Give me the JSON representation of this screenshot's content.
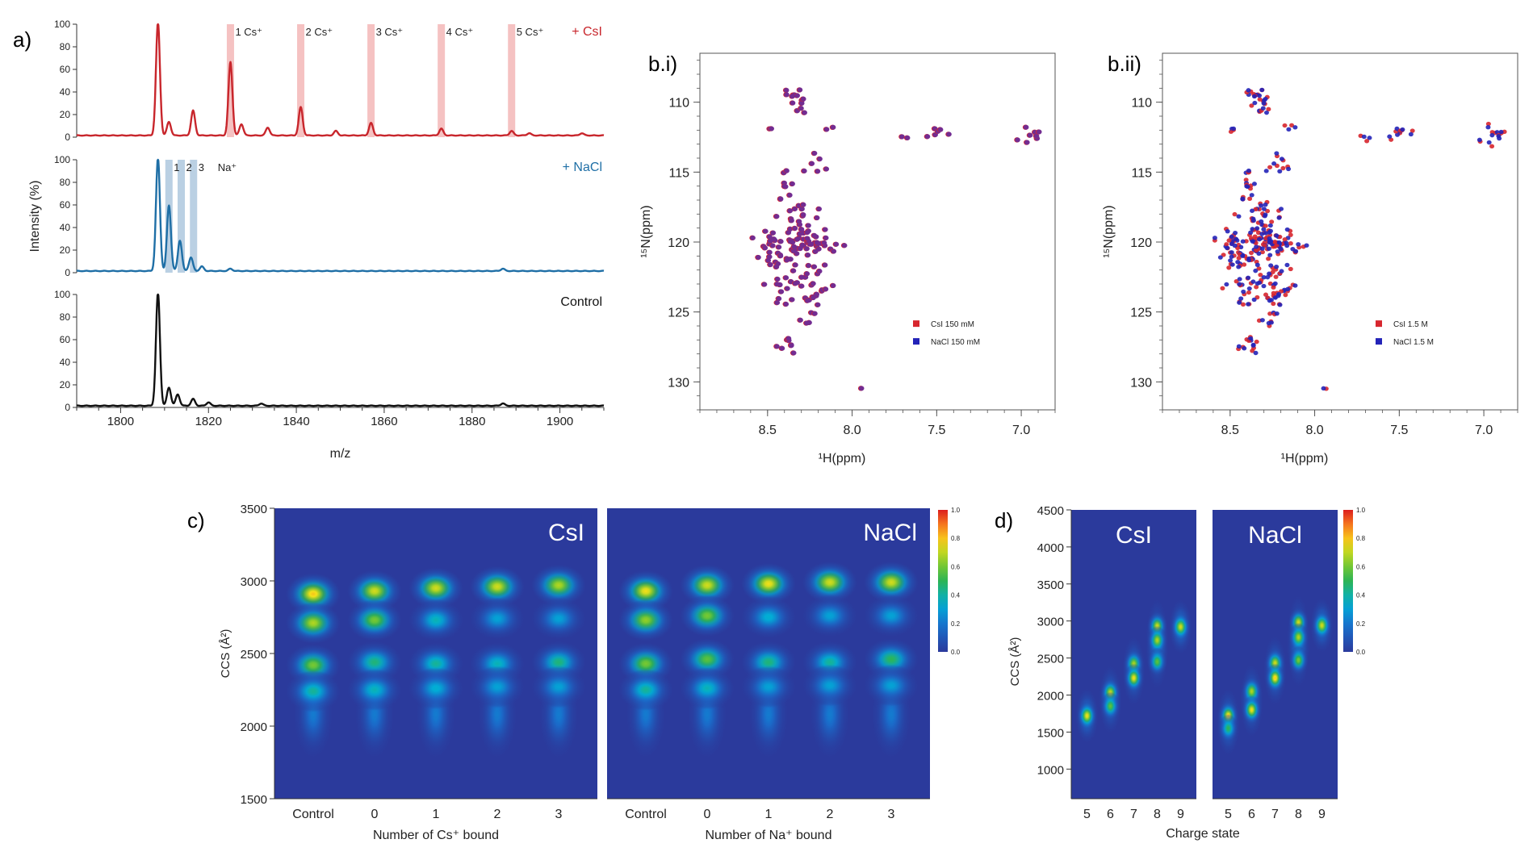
{
  "panels": {
    "a": "a)",
    "bi": "b.i)",
    "bii": "b.ii)",
    "c": "c)",
    "d": "d)"
  },
  "colors": {
    "csi": "#c8262c",
    "nacl": "#1f6fa6",
    "control": "#111111",
    "highlight_red": "#f3b3b3",
    "highlight_blue": "#a9c4dc",
    "nmr_red": "#d7262e",
    "nmr_blue": "#2323b8",
    "nmr_overlay": "#6a2d9a",
    "imms_bg": "#2b3a9c"
  },
  "chart_data": [
    {
      "type": "line",
      "panel": "a",
      "xlabel": "m/z",
      "ylabel": "Intensity (%)",
      "xlim": [
        1790,
        1910
      ],
      "xticks": [
        1800,
        1820,
        1840,
        1860,
        1880,
        1900
      ],
      "ylim": [
        0,
        100
      ],
      "yticks": [
        0,
        20,
        40,
        60,
        80,
        100
      ],
      "series": [
        {
          "name": "+ CsI",
          "peaks": [
            [
              1808.5,
              100
            ],
            [
              1811,
              12
            ],
            [
              1816.5,
              22
            ],
            [
              1825,
              65
            ],
            [
              1827.5,
              10
            ],
            [
              1833.5,
              7
            ],
            [
              1841,
              25
            ],
            [
              1849,
              4
            ],
            [
              1857,
              11
            ],
            [
              1873,
              6
            ],
            [
              1889,
              4
            ],
            [
              1893,
              2
            ],
            [
              1905,
              2
            ]
          ],
          "annotations": [
            "1 Cs⁺",
            "2 Cs⁺",
            "3 Cs⁺",
            "4 Cs⁺",
            "5 Cs⁺"
          ],
          "annotation_x": [
            1825,
            1841,
            1857,
            1873,
            1889
          ]
        },
        {
          "name": "+ NaCl",
          "peaks": [
            [
              1808.5,
              100
            ],
            [
              1811,
              58
            ],
            [
              1813.5,
              27
            ],
            [
              1816,
              12
            ],
            [
              1818.5,
              4
            ],
            [
              1825,
              2
            ],
            [
              1887,
              2
            ]
          ],
          "annotations": [
            "1",
            "2",
            "3",
            "Na⁺"
          ],
          "annotation_x": [
            1811,
            1813.8,
            1816.6,
            1821
          ]
        },
        {
          "name": "Control",
          "peaks": [
            [
              1808.5,
              100
            ],
            [
              1811,
              16
            ],
            [
              1813,
              10
            ],
            [
              1816.5,
              6
            ],
            [
              1820,
              3
            ],
            [
              1832,
              2
            ],
            [
              1887,
              2
            ]
          ]
        }
      ]
    },
    {
      "type": "scatter",
      "panel": "b.i",
      "xlabel": "¹H(ppm)",
      "ylabel": "¹⁵N(ppm)",
      "xlim": [
        8.9,
        6.8
      ],
      "ylim": [
        132,
        106.5
      ],
      "xticks": [
        8.5,
        8.0,
        7.5,
        7.0
      ],
      "yticks": [
        110,
        115,
        120,
        125,
        130
      ],
      "legend": [
        "CsI 150 mM",
        "NaCl 150 mM"
      ],
      "legend_position": "bottom-right"
    },
    {
      "type": "scatter",
      "panel": "b.ii",
      "xlabel": "¹H(ppm)",
      "ylabel": "¹⁵N(ppm)",
      "xlim": [
        8.9,
        6.8
      ],
      "ylim": [
        132,
        106.5
      ],
      "xticks": [
        8.5,
        8.0,
        7.5,
        7.0
      ],
      "yticks": [
        110,
        115,
        120,
        125,
        130
      ],
      "legend": [
        "CsI 1.5 M",
        "NaCl 1.5 M"
      ],
      "legend_position": "bottom-right"
    },
    {
      "type": "heatmap",
      "panel": "c",
      "ylabel": "CCS (Å²)",
      "ylim": [
        1500,
        3500
      ],
      "yticks": [
        1500,
        2000,
        2500,
        3000,
        3500
      ],
      "colorbar_ticks": [
        "1.0",
        "0.8",
        "0.6",
        "0.4",
        "0.2",
        "0.0"
      ],
      "maps": [
        {
          "title": "CsI",
          "xlabel": "Number of Cs⁺ bound",
          "categories": [
            "Control",
            "0",
            "1",
            "2",
            "3"
          ],
          "peaks": [
            [
              [
                2910,
                1.0
              ],
              [
                2710,
                0.85
              ],
              [
                2420,
                0.75
              ],
              [
                2240,
                0.5
              ]
            ],
            [
              [
                2930,
                0.9
              ],
              [
                2730,
                0.75
              ],
              [
                2440,
                0.55
              ],
              [
                2250,
                0.45
              ]
            ],
            [
              [
                2950,
                0.9
              ],
              [
                2730,
                0.45
              ],
              [
                2430,
                0.5
              ],
              [
                2260,
                0.4
              ]
            ],
            [
              [
                2960,
                0.9
              ],
              [
                2740,
                0.35
              ],
              [
                2430,
                0.45
              ],
              [
                2270,
                0.35
              ]
            ],
            [
              [
                2970,
                0.85
              ],
              [
                2740,
                0.35
              ],
              [
                2440,
                0.55
              ],
              [
                2270,
                0.35
              ]
            ]
          ]
        },
        {
          "title": "NaCl",
          "xlabel": "Number of Na⁺ bound",
          "categories": [
            "Control",
            "0",
            "1",
            "2",
            "3"
          ],
          "peaks": [
            [
              [
                2930,
                0.95
              ],
              [
                2730,
                0.8
              ],
              [
                2430,
                0.75
              ],
              [
                2250,
                0.5
              ]
            ],
            [
              [
                2970,
                0.9
              ],
              [
                2760,
                0.75
              ],
              [
                2460,
                0.7
              ],
              [
                2260,
                0.45
              ]
            ],
            [
              [
                2980,
                0.95
              ],
              [
                2750,
                0.4
              ],
              [
                2440,
                0.55
              ],
              [
                2270,
                0.35
              ]
            ],
            [
              [
                2990,
                0.9
              ],
              [
                2760,
                0.35
              ],
              [
                2440,
                0.5
              ],
              [
                2280,
                0.35
              ]
            ],
            [
              [
                2990,
                0.9
              ],
              [
                2760,
                0.35
              ],
              [
                2460,
                0.6
              ],
              [
                2280,
                0.35
              ]
            ]
          ]
        }
      ]
    },
    {
      "type": "heatmap",
      "panel": "d",
      "ylabel": "CCS (Å²)",
      "xlabel": "Charge state",
      "ylim": [
        600,
        4500
      ],
      "yticks": [
        1000,
        1500,
        2000,
        2500,
        3000,
        3500,
        4000,
        4500
      ],
      "colorbar_ticks": [
        "1.0",
        "0.8",
        "0.6",
        "0.4",
        "0.2",
        "0.0"
      ],
      "maps": [
        {
          "title": "CsI",
          "categories": [
            "5",
            "6",
            "7",
            "8",
            "9"
          ],
          "peaks": [
            [
              [
                1720,
                0.95
              ]
            ],
            [
              [
                2030,
                0.9
              ],
              [
                1850,
                0.7
              ]
            ],
            [
              [
                2420,
                0.85
              ],
              [
                2230,
                0.95
              ]
            ],
            [
              [
                2930,
                0.9
              ],
              [
                2740,
                0.85
              ],
              [
                2450,
                0.7
              ]
            ],
            [
              [
                2920,
                0.9
              ]
            ]
          ]
        },
        {
          "title": "NaCl",
          "categories": [
            "5",
            "6",
            "7",
            "8",
            "9"
          ],
          "peaks": [
            [
              [
                1720,
                1.0
              ],
              [
                1550,
                0.6
              ]
            ],
            [
              [
                2050,
                0.85
              ],
              [
                1800,
                0.95
              ]
            ],
            [
              [
                2430,
                0.9
              ],
              [
                2230,
                1.0
              ]
            ],
            [
              [
                2980,
                0.9
              ],
              [
                2780,
                0.85
              ],
              [
                2470,
                0.75
              ]
            ],
            [
              [
                2940,
                0.9
              ]
            ]
          ]
        }
      ]
    }
  ]
}
